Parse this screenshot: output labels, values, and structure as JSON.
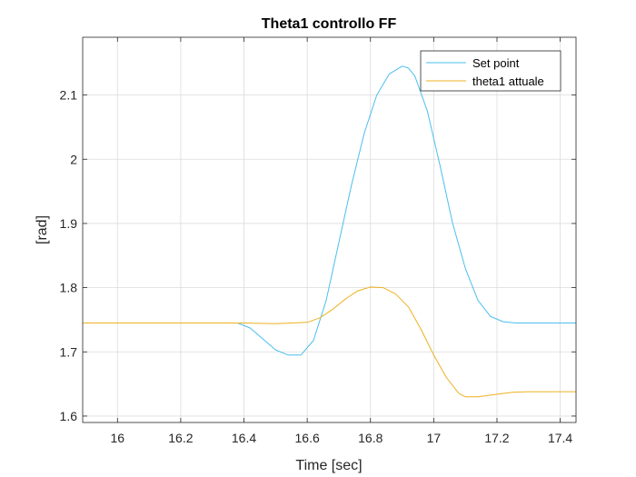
{
  "chart_data": {
    "type": "line",
    "title": "Theta1 controllo FF",
    "xlabel": "Time [sec]",
    "ylabel": "[rad]",
    "xlim": [
      15.89,
      17.45
    ],
    "ylim": [
      1.59,
      2.19
    ],
    "xticks": [
      "16",
      "16.2",
      "16.4",
      "16.6",
      "16.8",
      "17",
      "17.2",
      "17.4"
    ],
    "yticks": [
      "1.6",
      "1.7",
      "1.8",
      "1.9",
      "2",
      "2.1"
    ],
    "grid": true,
    "legend_position": "top-right",
    "series": [
      {
        "name": "Set point",
        "color": "#4DBEEE",
        "x": [
          15.89,
          16.0,
          16.2,
          16.38,
          16.42,
          16.46,
          16.5,
          16.54,
          16.58,
          16.62,
          16.66,
          16.7,
          16.74,
          16.78,
          16.82,
          16.86,
          16.9,
          16.92,
          16.94,
          16.98,
          17.02,
          17.06,
          17.1,
          17.14,
          17.18,
          17.22,
          17.26,
          17.3,
          17.45
        ],
        "y": [
          1.745,
          1.745,
          1.745,
          1.745,
          1.737,
          1.72,
          1.703,
          1.695,
          1.695,
          1.718,
          1.78,
          1.87,
          1.96,
          2.04,
          2.1,
          2.133,
          2.145,
          2.142,
          2.13,
          2.075,
          1.99,
          1.9,
          1.83,
          1.78,
          1.755,
          1.747,
          1.745,
          1.745,
          1.745
        ]
      },
      {
        "name": "theta1 attuale",
        "color": "#EDB120",
        "x": [
          15.89,
          16.0,
          16.2,
          16.4,
          16.5,
          16.6,
          16.64,
          16.68,
          16.72,
          16.76,
          16.8,
          16.84,
          16.88,
          16.92,
          16.96,
          17.0,
          17.04,
          17.08,
          17.1,
          17.14,
          17.2,
          17.25,
          17.3,
          17.45
        ],
        "y": [
          1.745,
          1.745,
          1.745,
          1.745,
          1.744,
          1.746,
          1.753,
          1.766,
          1.782,
          1.795,
          1.801,
          1.8,
          1.79,
          1.77,
          1.735,
          1.695,
          1.66,
          1.635,
          1.63,
          1.63,
          1.634,
          1.637,
          1.638,
          1.638
        ]
      }
    ]
  }
}
